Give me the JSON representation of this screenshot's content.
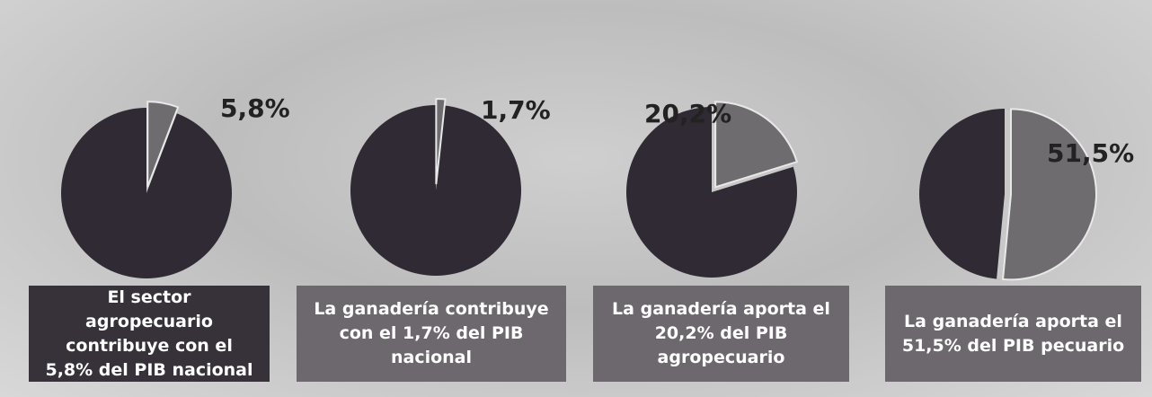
{
  "chart_data": [
    {
      "type": "pie",
      "values": [
        5.8
      ],
      "value_labels": [
        "5,8%"
      ],
      "caption": "El sector agropecuario contribuye con el 5,8% del PIB nacional",
      "color": "#6f6c70"
    },
    {
      "type": "pie",
      "values": [
        1.7
      ],
      "value_labels": [
        "1,7%"
      ],
      "caption": "La ganadería contribuye con el 1,7% del PIB nacional",
      "color": "#6f6c70"
    },
    {
      "type": "pie",
      "values": [
        20.2
      ],
      "value_labels": [
        "20,2%"
      ],
      "caption": "La ganadería aporta el 20,2% del PIB agropecuario",
      "color": "#6f6c70"
    },
    {
      "type": "pie",
      "values": [
        51.5
      ],
      "value_labels": [
        "51,5%"
      ],
      "caption": "La ganadería aporta el 51,5% del PIB pecuario",
      "color": "#6f6c70"
    }
  ]
}
